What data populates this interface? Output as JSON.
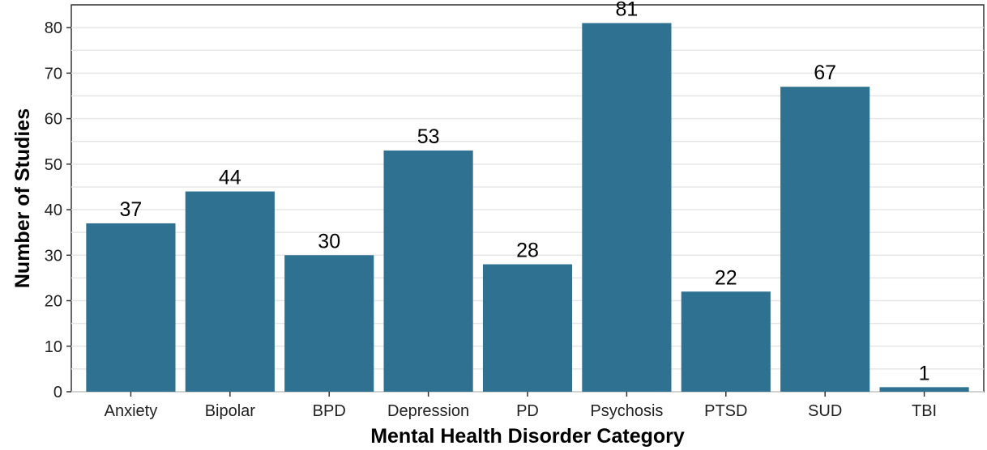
{
  "chart_data": {
    "type": "bar",
    "categories": [
      "Anxiety",
      "Bipolar",
      "BPD",
      "Depression",
      "PD",
      "Psychosis",
      "PTSD",
      "SUD",
      "TBI"
    ],
    "values": [
      37,
      44,
      30,
      53,
      28,
      81,
      22,
      67,
      1
    ],
    "data_labels": [
      "37",
      "44",
      "30",
      "53",
      "28",
      "81",
      "22",
      "67",
      "1"
    ],
    "xlabel": "Mental Health Disorder Category",
    "ylabel": "Number of Studies",
    "ylim": [
      0,
      85
    ],
    "yticks": [
      0,
      10,
      20,
      30,
      40,
      50,
      60,
      70,
      80
    ],
    "grid": true,
    "bar_color": "#2e7191"
  }
}
